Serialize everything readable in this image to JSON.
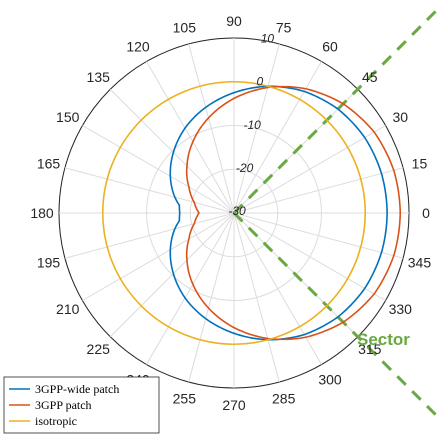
{
  "chart_data": {
    "type": "polar-line",
    "angle_unit": "degrees",
    "angle_ticks": [
      0,
      15,
      30,
      45,
      60,
      75,
      90,
      105,
      120,
      135,
      150,
      165,
      180,
      195,
      210,
      225,
      240,
      255,
      270,
      285,
      300,
      315,
      330,
      345
    ],
    "angle_tick_labels": [
      "0",
      "15",
      "30",
      "45",
      "60",
      "75",
      "90",
      "105",
      "120",
      "135",
      "150",
      "165",
      "180",
      "195",
      "210",
      "225",
      "240",
      "255",
      "270",
      "285",
      "300",
      "315",
      "330",
      "345"
    ],
    "r_ticks": [
      -30,
      -20,
      -10,
      0,
      10
    ],
    "r_tick_labels": [
      "-30",
      "-20",
      "-10",
      "0",
      "10"
    ],
    "rlim": [
      -30,
      10
    ],
    "r_tick_label_angle_deg": 80,
    "grid": true,
    "legend": {
      "placement": "bottom-left",
      "entries": [
        "3GPP-wide patch",
        "3GPP patch",
        "isotropic"
      ]
    },
    "series": [
      {
        "name": "3GPP-wide patch",
        "color": "#0072bd",
        "theta": [
          0,
          15,
          30,
          45,
          60,
          75,
          90,
          105,
          120,
          135,
          150,
          165,
          172,
          180,
          188,
          195,
          210,
          225,
          240,
          255,
          270,
          285,
          300,
          315,
          330,
          345
        ],
        "r": [
          5.0,
          4.9,
          4.5,
          3.6,
          2.1,
          0.0,
          -2.5,
          -5.0,
          -7.6,
          -10.4,
          -13.2,
          -16.0,
          -17.4,
          -17.6,
          -17.4,
          -16.0,
          -13.2,
          -10.4,
          -7.6,
          -5.0,
          -2.5,
          0.0,
          2.1,
          3.6,
          4.5,
          4.9
        ]
      },
      {
        "name": "3GPP patch",
        "color": "#d95319",
        "theta": [
          0,
          15,
          30,
          45,
          60,
          75,
          90,
          105,
          120,
          135,
          150,
          165,
          180,
          195,
          210,
          225,
          240,
          255,
          270,
          285,
          300,
          315,
          330,
          345
        ],
        "r": [
          8.0,
          7.8,
          7.0,
          5.3,
          2.8,
          -0.3,
          -3.8,
          -7.5,
          -11.2,
          -14.8,
          -18.1,
          -20.6,
          -22.0,
          -20.6,
          -18.1,
          -14.8,
          -11.2,
          -7.5,
          -3.8,
          -0.3,
          2.8,
          5.3,
          7.0,
          7.8
        ]
      },
      {
        "name": "isotropic",
        "color": "#edb120",
        "theta": [
          0,
          90,
          180,
          270,
          360
        ],
        "r": [
          0,
          0,
          0,
          0,
          0
        ]
      }
    ],
    "annotations": [
      {
        "type": "dashed-line",
        "angle": 45,
        "color": "#6aa842"
      },
      {
        "type": "dashed-line",
        "angle": 315,
        "color": "#6aa842"
      },
      {
        "type": "text",
        "text": "Sector",
        "color": "#6aa842"
      }
    ]
  }
}
